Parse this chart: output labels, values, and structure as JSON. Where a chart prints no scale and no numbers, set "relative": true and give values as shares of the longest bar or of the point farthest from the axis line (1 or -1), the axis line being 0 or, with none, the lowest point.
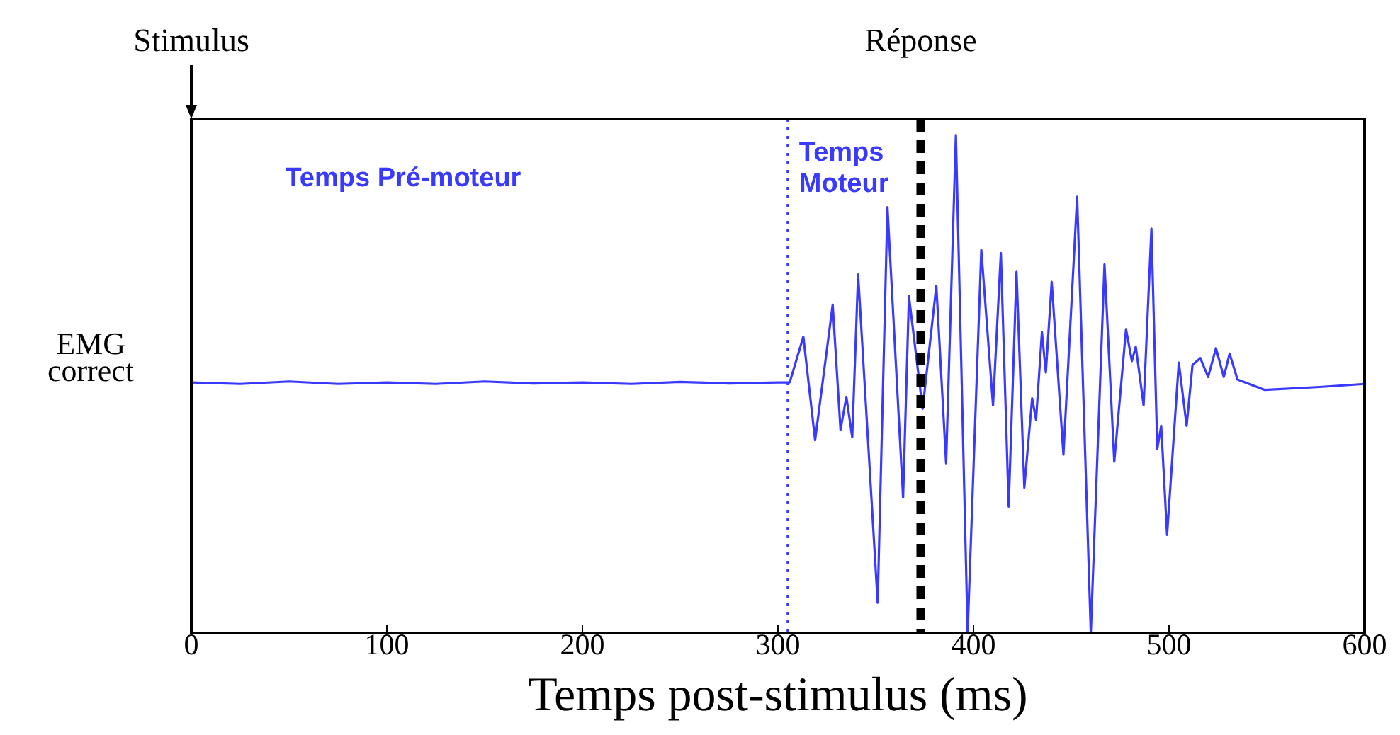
{
  "chart_data": {
    "type": "line",
    "relative": true,
    "xlabel": "Temps post-stimulus (ms)",
    "ylabel": "EMG correct",
    "xlim": [
      0,
      600
    ],
    "xticks": [
      0,
      100,
      200,
      300,
      400,
      500,
      600
    ],
    "tick_labels": "x",
    "grid": false,
    "legend": false,
    "marker": "none",
    "line_style": "solid",
    "x": [
      0,
      25,
      50,
      75,
      100,
      125,
      150,
      175,
      200,
      225,
      250,
      275,
      300,
      306,
      313,
      319,
      328,
      332,
      335,
      338,
      341,
      351,
      356,
      364,
      367,
      374,
      381,
      386,
      391,
      397,
      404,
      410,
      414,
      418,
      422,
      426,
      430,
      432,
      435,
      437,
      440,
      446,
      453,
      460,
      467,
      472,
      478,
      481,
      483,
      487,
      491,
      494,
      496,
      499,
      505,
      509,
      512,
      516,
      520,
      524,
      528,
      531,
      535,
      549,
      577,
      600
    ],
    "series": [
      {
        "color": "#3a3aff",
        "values": [
          0.503,
          0.5,
          0.505,
          0.5,
          0.503,
          0.5,
          0.505,
          0.501,
          0.503,
          0.5,
          0.504,
          0.501,
          0.503,
          0.503,
          0.595,
          0.387,
          0.659,
          0.408,
          0.474,
          0.393,
          0.72,
          0.061,
          0.855,
          0.272,
          0.676,
          0.45,
          0.697,
          0.341,
          1.0,
          0,
          0.769,
          0.457,
          0.763,
          0.254,
          0.725,
          0.292,
          0.471,
          0.428,
          0.604,
          0.523,
          0.705,
          0.358,
          0.876,
          0,
          0.74,
          0.344,
          0.61,
          0.546,
          0.575,
          0.457,
          0.812,
          0.37,
          0.416,
          0.197,
          0.543,
          0.416,
          0.538,
          0.552,
          0.514,
          0.572,
          0.514,
          0.561,
          0.509,
          0.488,
          0.494,
          0.5
        ]
      }
    ],
    "ref_lines": [
      {
        "axis": "x",
        "value": 305,
        "color": "#3a3aff",
        "line_style": "dotted"
      },
      {
        "axis": "x",
        "value": 373,
        "label": "Réponse",
        "color": "#000000",
        "line_style": "dashed"
      }
    ],
    "annotations": [
      "Stimulus",
      "Temps Pré-moteur",
      "Temps Moteur"
    ]
  }
}
